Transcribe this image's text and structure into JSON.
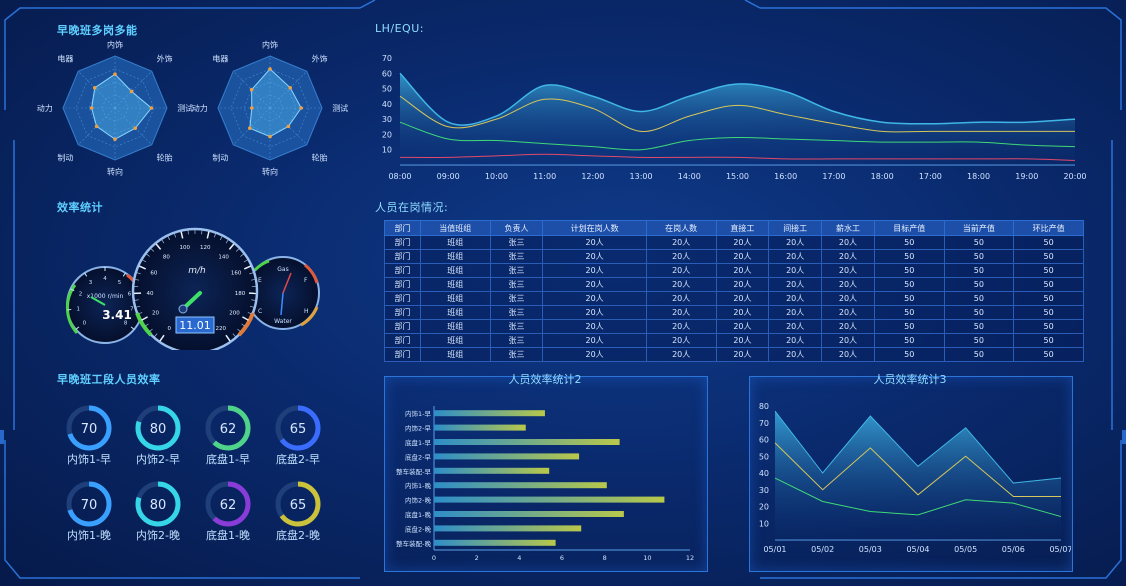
{
  "sections": {
    "multi_skill": "早晚班多岗多能",
    "lh_equ": "LH/EQU:",
    "efficiency": "效率统计",
    "staff_status": "人员在岗情况:",
    "team_efficiency": "早晚班工段人员效率",
    "chart2_title": "人员效率统计2",
    "chart3_title": "人员效率统计3"
  },
  "radar": {
    "axes": [
      "内饰",
      "外饰",
      "测试",
      "轮胎",
      "转向",
      "制动",
      "动力",
      "电器"
    ],
    "left_values": [
      0.65,
      0.45,
      0.7,
      0.55,
      0.6,
      0.5,
      0.45,
      0.55
    ],
    "right_values": [
      0.75,
      0.55,
      0.6,
      0.5,
      0.55,
      0.55,
      0.35,
      0.5
    ]
  },
  "gauges": {
    "rpm_value": "3.41",
    "rpm_unit": "x1000 r/min",
    "rpm_ticks": [
      "0",
      "1",
      "2",
      "3",
      "4",
      "5",
      "6",
      "7",
      "8"
    ],
    "speed_unit": "m/h",
    "speed_value": "11.01",
    "speed_ticks": [
      "0",
      "20",
      "40",
      "60",
      "80",
      "100",
      "120",
      "140",
      "160",
      "180",
      "200",
      "220"
    ],
    "gas_label": "Gas",
    "water_label": "Water",
    "letters": [
      "E",
      "F",
      "C",
      "H"
    ]
  },
  "staff_table": {
    "headers": [
      "部门",
      "当值班组",
      "负责人",
      "计划在岗人数",
      "在岗人数",
      "直接工",
      "间接工",
      "薪水工",
      "目标产值",
      "当前产值",
      "环比产值"
    ],
    "rows": [
      [
        "部门",
        "班组",
        "张三",
        "20人",
        "20人",
        "20人",
        "20人",
        "20人",
        "50",
        "50",
        "50"
      ],
      [
        "部门",
        "班组",
        "张三",
        "20人",
        "20人",
        "20人",
        "20人",
        "20人",
        "50",
        "50",
        "50"
      ],
      [
        "部门",
        "班组",
        "张三",
        "20人",
        "20人",
        "20人",
        "20人",
        "20人",
        "50",
        "50",
        "50"
      ],
      [
        "部门",
        "班组",
        "张三",
        "20人",
        "20人",
        "20人",
        "20人",
        "20人",
        "50",
        "50",
        "50"
      ],
      [
        "部门",
        "班组",
        "张三",
        "20人",
        "20人",
        "20人",
        "20人",
        "20人",
        "50",
        "50",
        "50"
      ],
      [
        "部门",
        "班组",
        "张三",
        "20人",
        "20人",
        "20人",
        "20人",
        "20人",
        "50",
        "50",
        "50"
      ],
      [
        "部门",
        "班组",
        "张三",
        "20人",
        "20人",
        "20人",
        "20人",
        "20人",
        "50",
        "50",
        "50"
      ],
      [
        "部门",
        "班组",
        "张三",
        "20人",
        "20人",
        "20人",
        "20人",
        "20人",
        "50",
        "50",
        "50"
      ],
      [
        "部门",
        "班组",
        "张三",
        "20人",
        "20人",
        "20人",
        "20人",
        "20人",
        "50",
        "50",
        "50"
      ]
    ]
  },
  "rings": [
    {
      "value": 70,
      "label": "内饰1-早",
      "color": "#3aa0ff"
    },
    {
      "value": 80,
      "label": "内饰2-早",
      "color": "#36d6e8"
    },
    {
      "value": 62,
      "label": "底盘1-早",
      "color": "#4fd38a"
    },
    {
      "value": 65,
      "label": "底盘2-早",
      "color": "#3a6cff"
    },
    {
      "value": 70,
      "label": "内饰1-晚",
      "color": "#3aa0ff"
    },
    {
      "value": 80,
      "label": "内饰2-晚",
      "color": "#36d6e8"
    },
    {
      "value": 62,
      "label": "底盘1-晚",
      "color": "#8a3cd8"
    },
    {
      "value": 65,
      "label": "底盘2-晚",
      "color": "#c9c23a"
    }
  ],
  "chart_data": [
    {
      "type": "area",
      "title": "LH/EQU:",
      "x": [
        "08:00",
        "09:00",
        "10:00",
        "11:00",
        "12:00",
        "13:00",
        "14:00",
        "15:00",
        "16:00",
        "17:00",
        "18:00",
        "17:00",
        "18:00",
        "19:00",
        "20:00"
      ],
      "yticks": [
        10,
        20,
        30,
        40,
        50,
        60,
        70
      ],
      "ylim": [
        0,
        70
      ],
      "series": [
        {
          "values": [
            60,
            28,
            32,
            52,
            45,
            35,
            45,
            53,
            48,
            35,
            28,
            27,
            28,
            28,
            30
          ],
          "color": "#3fb6e6"
        },
        {
          "values": [
            45,
            25,
            30,
            43,
            37,
            22,
            32,
            39,
            33,
            27,
            22,
            22,
            22,
            22,
            22
          ],
          "color": "#d8c65a"
        },
        {
          "values": [
            28,
            17,
            16,
            14,
            12,
            10,
            16,
            18,
            17,
            16,
            15,
            15,
            15,
            13,
            12
          ],
          "color": "#3fd878"
        },
        {
          "values": [
            5,
            5,
            6,
            7,
            6,
            5,
            5,
            5,
            4,
            4,
            4,
            4,
            4,
            4,
            3
          ],
          "color": "#e04a6a"
        }
      ]
    },
    {
      "type": "bar",
      "title": "人员效率统计2",
      "orientation": "horizontal",
      "categories": [
        "内饰1-早",
        "内饰2-早",
        "底盘1-早",
        "底盘2-早",
        "整车装配-早",
        "内饰1-晚",
        "内饰2-晚",
        "底盘1-晚",
        "底盘2-晚",
        "整车装配-晚"
      ],
      "values": [
        5.2,
        4.3,
        8.7,
        6.8,
        5.4,
        8.1,
        10.8,
        8.9,
        6.9,
        5.7
      ],
      "xticks": [
        0,
        2,
        4,
        6,
        8,
        10,
        12
      ],
      "xlim": [
        0,
        12
      ]
    },
    {
      "type": "area",
      "title": "人员效率统计3",
      "x": [
        "05/01",
        "05/02",
        "05/03",
        "05/04",
        "05/05",
        "05/06",
        "05/07"
      ],
      "yticks": [
        10,
        20,
        30,
        40,
        50,
        60,
        70,
        80
      ],
      "ylim": [
        0,
        80
      ],
      "series": [
        {
          "values": [
            77,
            40,
            74,
            44,
            67,
            34,
            37
          ],
          "color": "#3fb6e6"
        },
        {
          "values": [
            58,
            30,
            55,
            27,
            50,
            26,
            26
          ],
          "color": "#d8c65a"
        },
        {
          "values": [
            37,
            23,
            17,
            15,
            24,
            22,
            14
          ],
          "color": "#3fd878"
        }
      ]
    }
  ]
}
